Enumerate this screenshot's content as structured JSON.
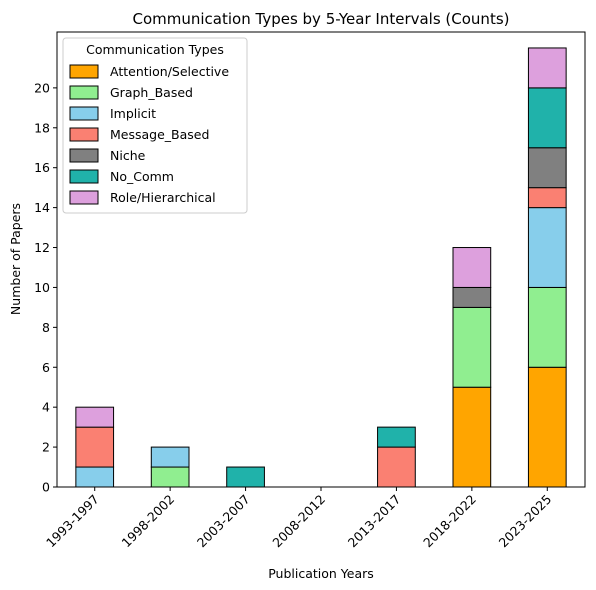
{
  "chart_data": {
    "type": "bar",
    "stacked": true,
    "title": "Communication Types by 5-Year Intervals (Counts)",
    "xlabel": "Publication Years",
    "ylabel": "Number of Papers",
    "ylim": [
      0,
      22.8
    ],
    "yticks": [
      0,
      2,
      4,
      6,
      8,
      10,
      12,
      14,
      16,
      18,
      20
    ],
    "grid": false,
    "legend": {
      "title": "Communication Types",
      "placement": "top-left"
    },
    "categories": [
      "1993-1997",
      "1998-2002",
      "2003-2007",
      "2008-2012",
      "2013-2017",
      "2018-2022",
      "2023-2025"
    ],
    "series": [
      {
        "name": "Attention/Selective",
        "color": "#FFA500",
        "values": [
          0,
          0,
          0,
          0,
          0,
          5,
          6
        ]
      },
      {
        "name": "Graph_Based",
        "color": "#90EE90",
        "values": [
          0,
          1,
          0,
          0,
          0,
          4,
          4
        ]
      },
      {
        "name": "Implicit",
        "color": "#87CEEB",
        "values": [
          1,
          1,
          0,
          0,
          0,
          0,
          4
        ]
      },
      {
        "name": "Message_Based",
        "color": "#FA8072",
        "values": [
          2,
          0,
          0,
          0,
          2,
          0,
          1
        ]
      },
      {
        "name": "Niche",
        "color": "#808080",
        "values": [
          0,
          0,
          0,
          0,
          0,
          1,
          2
        ]
      },
      {
        "name": "No_Comm",
        "color": "#20B2AA",
        "values": [
          0,
          0,
          1,
          0,
          1,
          0,
          3
        ]
      },
      {
        "name": "Role/Hierarchical",
        "color": "#DDA0DD",
        "values": [
          1,
          0,
          0,
          0,
          0,
          2,
          2
        ]
      }
    ]
  }
}
